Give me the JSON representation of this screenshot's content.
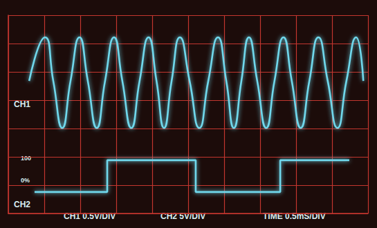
{
  "chart_data": {
    "type": "line",
    "xlim": [
      0,
      10
    ],
    "xticks": [
      0,
      1,
      2,
      3,
      4,
      5,
      6,
      7,
      8,
      9,
      10
    ],
    "ylim": [
      0,
      7
    ],
    "yticks": [
      0,
      1,
      2,
      3,
      4,
      5,
      6,
      7
    ],
    "grid": true,
    "tick_labels": false,
    "annotations": [
      "100",
      "0%",
      "CH1 0.5V/DIV",
      "CH2 5V/DIV",
      "TIME 0.5mS/DIV"
    ],
    "series": [
      {
        "name": "CH1",
        "type": "spline",
        "color": "#6fd8ec",
        "x": [
          0.58,
          1.02,
          1.25,
          1.5,
          1.73,
          1.98,
          2.21,
          2.46,
          2.69,
          2.94,
          3.17,
          3.42,
          3.65,
          3.9,
          4.12,
          4.33,
          4.54,
          4.77,
          5.04,
          5.31,
          5.56,
          5.83,
          6.06,
          6.27,
          6.48,
          6.69,
          6.92,
          7.17,
          7.4,
          7.65,
          7.88,
          8.13,
          8.37,
          8.62,
          8.88,
          9.15,
          9.4,
          9.67,
          9.87
        ],
        "values": [
          4.68,
          6.22,
          4.68,
          3.02,
          4.68,
          6.22,
          4.68,
          3.02,
          4.68,
          6.22,
          4.68,
          3.02,
          4.68,
          6.22,
          4.68,
          3.02,
          4.68,
          6.22,
          4.68,
          3.02,
          4.68,
          6.22,
          4.68,
          3.02,
          4.68,
          6.22,
          4.68,
          3.02,
          4.68,
          6.22,
          4.68,
          3.02,
          4.68,
          6.22,
          4.68,
          3.02,
          4.68,
          6.22,
          4.68
        ]
      },
      {
        "name": "CH2",
        "type": "line",
        "color": "#6fd8ec",
        "x": [
          0.73,
          2.75,
          2.75,
          5.21,
          5.21,
          7.56,
          7.56,
          9.48
        ],
        "values": [
          0.76,
          0.76,
          1.88,
          1.88,
          0.76,
          0.76,
          1.88,
          1.88
        ]
      }
    ]
  }
}
